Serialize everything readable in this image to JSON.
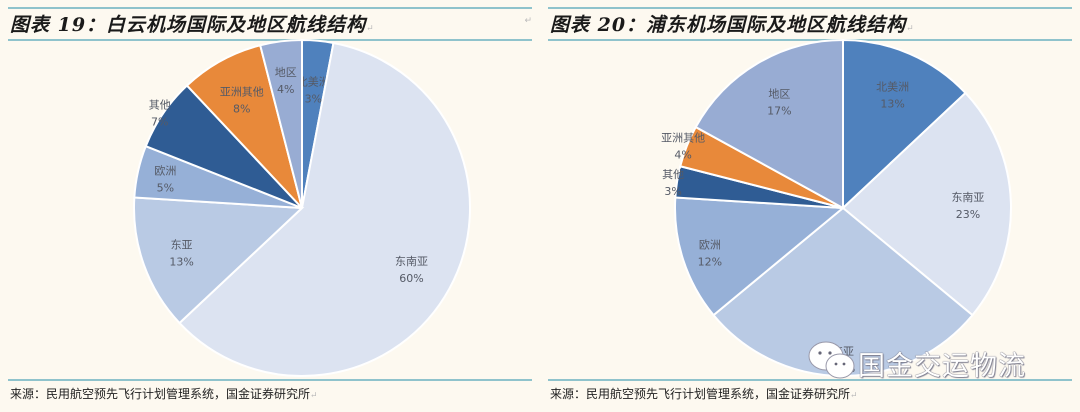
{
  "colors": {
    "north_america": "#4f81bd",
    "southeast_asia": "#dce3f1",
    "east_asia": "#b9cae4",
    "europe": "#96b0d7",
    "other": "#2f5c94",
    "asia_other": "#e8893a",
    "region": "#98acd3",
    "rule": "#8fc3cc",
    "background": "#fdf9f0"
  },
  "left": {
    "title": "图表 19：白云机场国际及地区航线结构",
    "source": "来源：民用航空预先飞行计划管理系统，国金证券研究所"
  },
  "right": {
    "title": "图表 20：浦东机场国际及地区航线结构",
    "source": "来源：民用航空预先飞行计划管理系统，国金证券研究所"
  },
  "watermark": "国金交运物流",
  "chart_data": [
    {
      "type": "pie",
      "title": "图表 19：白云机场国际及地区航线结构",
      "categories": [
        "北美洲",
        "东南亚",
        "东亚",
        "欧洲",
        "其他",
        "亚洲其他",
        "地区"
      ],
      "values": [
        3,
        60,
        13,
        5,
        7,
        8,
        4
      ],
      "unit": "%",
      "start_angle": "12 o'clock, clockwise",
      "source": "来源：民用航空预先飞行计划管理系统，国金证券研究所"
    },
    {
      "type": "pie",
      "title": "图表 20：浦东机场国际及地区航线结构",
      "categories": [
        "北美洲",
        "东南亚",
        "东亚",
        "欧洲",
        "其他",
        "亚洲其他",
        "地区"
      ],
      "values": [
        13,
        23,
        28,
        12,
        3,
        4,
        17
      ],
      "unit": "%",
      "start_angle": "12 o'clock, clockwise",
      "source": "来源：民用航空预先飞行计划管理系统，国金证券研究所"
    }
  ]
}
